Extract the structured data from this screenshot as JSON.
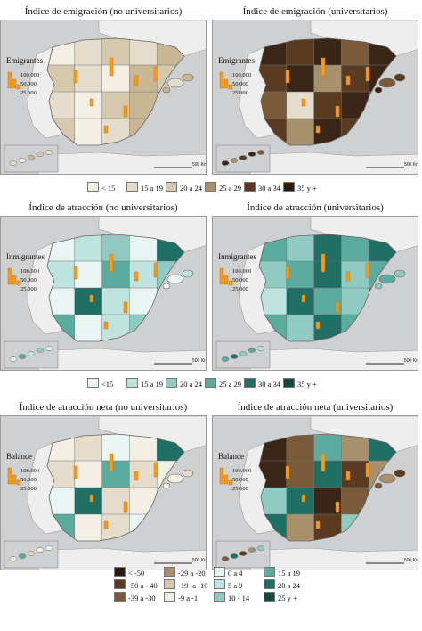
{
  "panels": [
    {
      "title": "Índice de emigración (no universitarios)",
      "scale_label": "Emigrantes",
      "scale_values": [
        "100.000",
        "50.000",
        "25.000"
      ],
      "fills": [
        "#f4efe5",
        "#e6dccb",
        "#d5c8ad",
        "#e6dccb",
        "#c9b794",
        "#d5c8ad",
        "#e6dccb",
        "#f4efe5",
        "#c9b794",
        "#d5c8ad",
        "#e6dccb",
        "#f4efe5",
        "#d5c8ad",
        "#c9b794",
        "#e6dccb",
        "#d5c8ad",
        "#f4efe5",
        "#e6dccb",
        "#c9b794",
        "#d5c8ad"
      ]
    },
    {
      "title": "Índice de emigración (universitarios)",
      "scale_label": "Emigrantes",
      "scale_values": [
        "100.000",
        "50.000",
        "25.000"
      ],
      "fills": [
        "#3a2516",
        "#5a3b22",
        "#3a2516",
        "#7a5a3a",
        "#3a2516",
        "#5a3b22",
        "#3a2516",
        "#a8906c",
        "#5a3b22",
        "#3a2516",
        "#7a5a3a",
        "#e6dccb",
        "#5a3b22",
        "#3a2516",
        "#7a5a3a",
        "#5a3b22",
        "#a8906c",
        "#3a2516",
        "#5a3b22",
        "#7a5a3a"
      ]
    },
    {
      "title": "Índice de atracción (no universitarios)",
      "scale_label": "Inmigrantes",
      "scale_values": [
        "100.000",
        "50.000",
        "25.000"
      ],
      "fills": [
        "#e8f5f3",
        "#bfe3de",
        "#8fcbc3",
        "#e8f5f3",
        "#1f6f65",
        "#bfe3de",
        "#e8f5f3",
        "#5bab9f",
        "#bfe3de",
        "#8fcbc3",
        "#e8f5f3",
        "#1f6f65",
        "#bfe3de",
        "#e8f5f3",
        "#8fcbc3",
        "#5bab9f",
        "#e8f5f3",
        "#bfe3de",
        "#8fcbc3",
        "#e8f5f3"
      ]
    },
    {
      "title": "Índice de atracción (universitarios)",
      "scale_label": "Inmigrantes",
      "scale_values": [
        "100.000",
        "50.000",
        "25.000"
      ],
      "fills": [
        "#5bab9f",
        "#8fcbc3",
        "#1f6f65",
        "#5bab9f",
        "#1f6f65",
        "#8fcbc3",
        "#5bab9f",
        "#1f6f65",
        "#8fcbc3",
        "#5bab9f",
        "#bfe3de",
        "#1f6f65",
        "#5bab9f",
        "#8fcbc3",
        "#1f6f65",
        "#5bab9f",
        "#8fcbc3",
        "#1f6f65",
        "#5bab9f",
        "#bfe3de"
      ]
    },
    {
      "title": "Índice de atracción neta (no universitarios)",
      "scale_label": "Balance",
      "scale_values": [
        "100.000",
        "50.000",
        "25.000"
      ],
      "fills": [
        "#f4efe5",
        "#e6dccb",
        "#e8f5f3",
        "#f4efe5",
        "#1f6f65",
        "#e6dccb",
        "#f4efe5",
        "#5bab9f",
        "#e6dccb",
        "#f4efe5",
        "#e8f5f3",
        "#1f6f65",
        "#e6dccb",
        "#f4efe5",
        "#e8f5f3",
        "#5bab9f",
        "#f4efe5",
        "#e6dccb",
        "#e8f5f3",
        "#f4efe5"
      ]
    },
    {
      "title": "Índice de atracción neta (universitarios)",
      "scale_label": "Balance",
      "scale_values": [
        "100.000",
        "50.000",
        "25.000"
      ],
      "fills": [
        "#3a2516",
        "#7a5a3a",
        "#5bab9f",
        "#a8906c",
        "#1f6f65",
        "#3a2516",
        "#7a5a3a",
        "#1f6f65",
        "#5a3b22",
        "#a8906c",
        "#8fcbc3",
        "#1f6f65",
        "#3a2516",
        "#7a5a3a",
        "#5bab9f",
        "#1f6f65",
        "#a8906c",
        "#5a3b22",
        "#8fcbc3",
        "#7a5a3a"
      ]
    }
  ],
  "scalebar_label": "500 Km",
  "legend_emigration": [
    {
      "label": "< 15",
      "color": "#f4efe5"
    },
    {
      "label": "15 a 19",
      "color": "#e6dccb"
    },
    {
      "label": "20 a 24",
      "color": "#d5c8ad"
    },
    {
      "label": "25 a 29",
      "color": "#a8906c"
    },
    {
      "label": "30 a 34",
      "color": "#5a3b22"
    },
    {
      "label": "35 y +",
      "color": "#2a190d"
    }
  ],
  "legend_attraction": [
    {
      "label": "<15",
      "color": "#e8f5f3"
    },
    {
      "label": "15 a 19",
      "color": "#bfe3de"
    },
    {
      "label": "20 a 24",
      "color": "#8fcbc3"
    },
    {
      "label": "25 a 29",
      "color": "#5bab9f"
    },
    {
      "label": "30 a 34",
      "color": "#1f6f65"
    },
    {
      "label": "35 y +",
      "color": "#0f4a43"
    }
  ],
  "legend_net": [
    {
      "label": "< -50",
      "color": "#2a190d"
    },
    {
      "label": "-29 a -20",
      "color": "#a8906c"
    },
    {
      "label": "0 a 4",
      "color": "#e8f5f3"
    },
    {
      "label": "15 a 19",
      "color": "#5bab9f"
    },
    {
      "label": "-50 a - 40",
      "color": "#5a3b22"
    },
    {
      "label": "-19 -a -10",
      "color": "#d5c8ad"
    },
    {
      "label": "5 a 9",
      "color": "#bfe3de"
    },
    {
      "label": "20 a 24",
      "color": "#1f6f65"
    },
    {
      "label": "-39 a -30",
      "color": "#7a5a3a"
    },
    {
      "label": "-9 a -1",
      "color": "#f4efe5"
    },
    {
      "label": "10 - 14",
      "color": "#8fcbc3"
    },
    {
      "label": "25 y +",
      "color": "#0f4a43"
    }
  ]
}
